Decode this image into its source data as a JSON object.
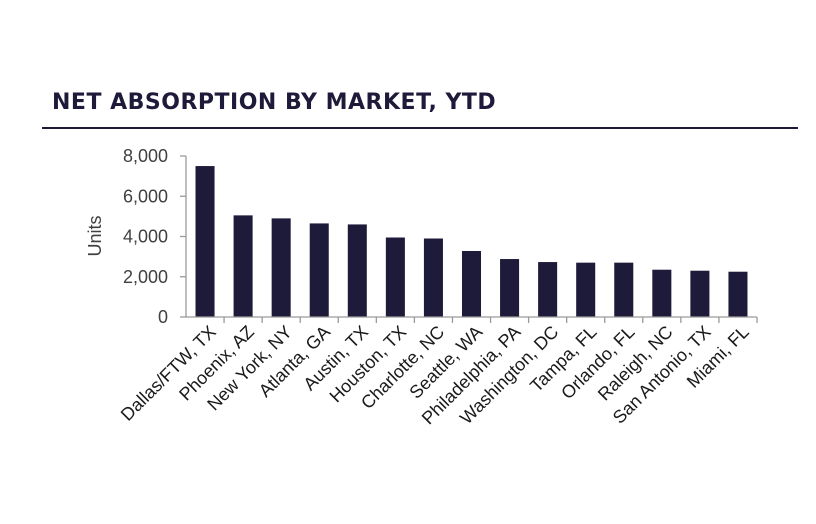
{
  "title": "NET ABSORPTION BY MARKET, YTD",
  "chart_data": {
    "type": "bar",
    "title": "NET ABSORPTION BY MARKET, YTD",
    "xlabel": "",
    "ylabel": "Units",
    "ylim": [
      0,
      8000
    ],
    "yticks": [
      0,
      2000,
      4000,
      6000,
      8000
    ],
    "ytick_labels": [
      "0",
      "2,000",
      "4,000",
      "6,000",
      "8,000"
    ],
    "grid": false,
    "legend": "none",
    "bar_color": "#1e1a3a",
    "categories": [
      "Dallas/FTW, TX",
      "Phoenix, AZ",
      "New York, NY",
      "Atlanta, GA",
      "Austin, TX",
      "Houston, TX",
      "Charlotte, NC",
      "Seattle, WA",
      "Philadelphia, PA",
      "Washington, DC",
      "Tampa, FL",
      "Orlando, FL",
      "Raleigh, NC",
      "San Antonio, TX",
      "Miami, FL"
    ],
    "values": [
      7500,
      5050,
      4900,
      4650,
      4600,
      3950,
      3900,
      3280,
      2880,
      2730,
      2700,
      2700,
      2350,
      2300,
      2250
    ]
  }
}
